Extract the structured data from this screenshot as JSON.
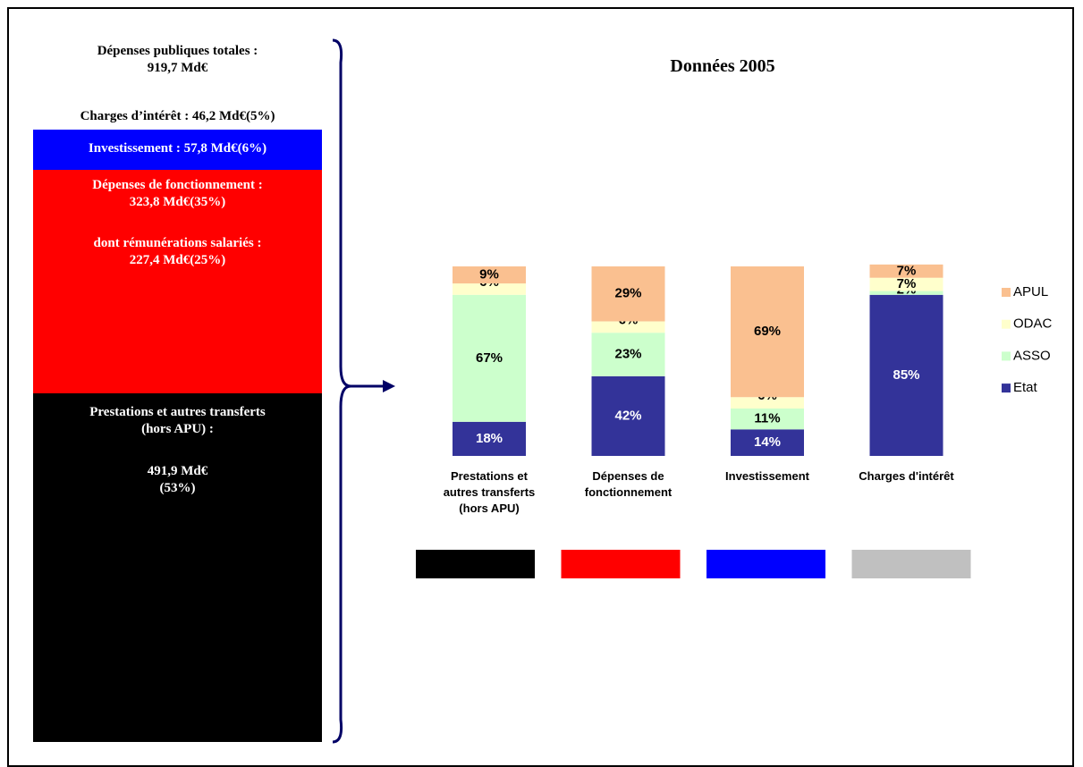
{
  "panel": {
    "title": [
      "Dépenses publiques totales :",
      "919,7 Md€"
    ],
    "interest": "Charges d’intérêt : 46,2 Md€(5%)",
    "investment": "Investissement : 57,8 Md€(6%)",
    "operating": [
      "Dépenses de fonctionnement :",
      "323,8 Md€(35%)"
    ],
    "salaries": [
      "dont rémunérations salariés :",
      "227,4 Md€(25%)"
    ],
    "transfers": [
      "Prestations et autres transferts",
      "(hors APU) :"
    ],
    "transfers_amount": [
      "491,9 Md€",
      "(53%)"
    ]
  },
  "chart_data": {
    "type": "stacked_bar",
    "title": "Données 2005",
    "categories": [
      "Prestations et autres transferts (hors APU)",
      "Dépenses de fonctionnement",
      "Investissement",
      "Charges d'intérêt"
    ],
    "category_colors": [
      "#000000",
      "#ff0000",
      "#0000ff",
      "#c0c0c0"
    ],
    "ylim": [
      0,
      100
    ],
    "series": [
      {
        "name": "Etat",
        "color": "#333399",
        "values": [
          18,
          42,
          14,
          85
        ],
        "value_labels": [
          "18%",
          "42%",
          "14%",
          "85%"
        ]
      },
      {
        "name": "ASSO",
        "color": "#ccffcc",
        "values": [
          67,
          23,
          11,
          2
        ],
        "value_labels": [
          "67%",
          "23%",
          "11%",
          "2%"
        ]
      },
      {
        "name": "ODAC",
        "color": "#ffffcc",
        "values": [
          6,
          6,
          6,
          7
        ],
        "value_labels": [
          "6%",
          "6%",
          "6%",
          "7%"
        ]
      },
      {
        "name": "APUL",
        "color": "#fac090",
        "values": [
          9,
          29,
          69,
          7
        ],
        "value_labels": [
          "9%",
          "29%",
          "69%",
          "7%"
        ]
      }
    ],
    "legend": "right"
  }
}
